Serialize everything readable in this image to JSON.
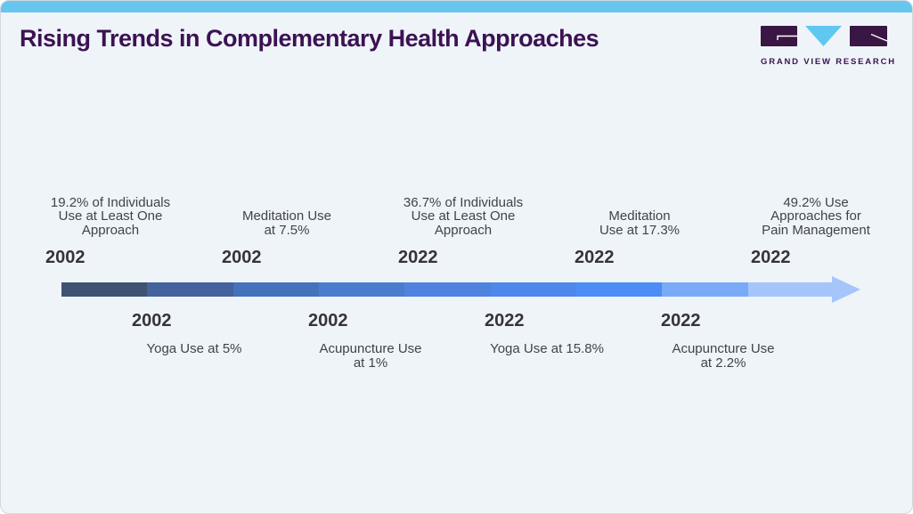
{
  "header": {
    "title": "Rising Trends in Complementary Health Approaches",
    "logo_text": "GRAND VIEW RESEARCH"
  },
  "timeline": {
    "top_events": [
      {
        "year": "2002",
        "description": "19.2% of Individuals\nUse at Least One\nApproach"
      },
      {
        "year": "2002",
        "description": "Meditation Use\nat 7.5%"
      },
      {
        "year": "2022",
        "description": "36.7% of Individuals\nUse at Least One\nApproach"
      },
      {
        "year": "2022",
        "description": "Meditation\nUse at 17.3%"
      },
      {
        "year": "2022",
        "description": "49.2% Use\nApproaches for\nPain Management"
      }
    ],
    "bottom_events": [
      {
        "year": "2002",
        "description": "Yoga Use at 5%"
      },
      {
        "year": "2002",
        "description": "Acupuncture Use\nat 1%"
      },
      {
        "year": "2022",
        "description": "Yoga Use at 15.8%"
      },
      {
        "year": "2022",
        "description": "Acupuncture Use\nat 2.2%"
      }
    ],
    "arrow_segment_colors": [
      "#3e5371",
      "#44629b",
      "#4671bb",
      "#4c7cd0",
      "#5083e0",
      "#4e88ec",
      "#4d8df6",
      "#7aa9f8",
      "#a6c5fa"
    ],
    "arrowhead_color": "#a6c5fa"
  },
  "colors": {
    "accent_bar": "#67c6ee",
    "card_background": "#eff4f9",
    "title_text": "#3c1253",
    "year_text": "#36323e",
    "description_text": "#3f444c",
    "logo_purple": "#3a1644",
    "logo_blue": "#5ec8f0"
  }
}
